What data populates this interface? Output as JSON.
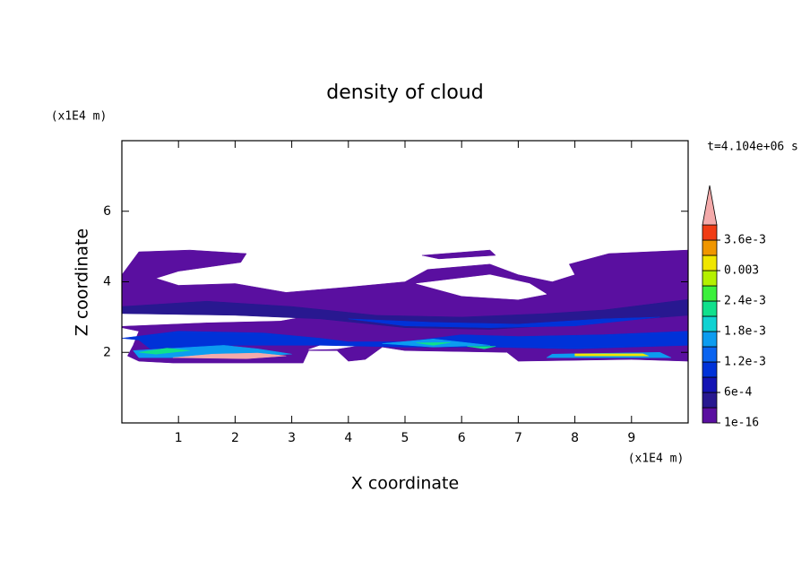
{
  "chart_data": {
    "type": "contour",
    "title": "density of cloud",
    "x_label": "X coordinate",
    "y_label": "Z coordinate",
    "x_unit": "(x1E4 m)",
    "y_unit": "(x1E4 m)",
    "annotation": "t=4.104e+06 s",
    "xlim": [
      0,
      10
    ],
    "ylim": [
      0,
      8
    ],
    "xticks": [
      1,
      2,
      3,
      4,
      5,
      6,
      7,
      8,
      9
    ],
    "yticks": [
      2,
      4,
      6
    ],
    "colorbar": {
      "ticks": [
        {
          "value": 1e-16,
          "label": "1e-16"
        },
        {
          "value": 0.0006,
          "label": "6e-4"
        },
        {
          "value": 0.0012,
          "label": "1.2e-3"
        },
        {
          "value": 0.0018,
          "label": "1.8e-3"
        },
        {
          "value": 0.0024,
          "label": "2.4e-3"
        },
        0.003,
        {
          "value": 0.0036,
          "label": "3.6e-3"
        }
      ],
      "colors": [
        "#5a0fa0",
        "#281890",
        "#1414b4",
        "#0032d8",
        "#0a64f0",
        "#0c9cf0",
        "#10d2d2",
        "#10e08c",
        "#3cf03c",
        "#b4f000",
        "#f0e600",
        "#f09600",
        "#f03c14"
      ],
      "extend_color": "#f4aaaa"
    }
  }
}
